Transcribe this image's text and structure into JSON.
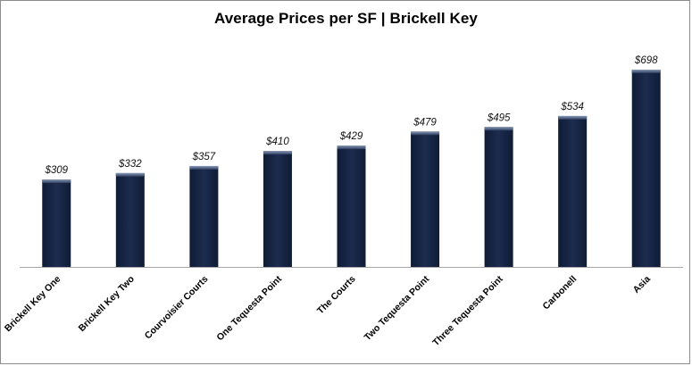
{
  "chart_data": {
    "type": "bar",
    "title": "Average Prices per SF | Brickell Key",
    "categories": [
      "Brickell Key One",
      "Brickell Key Two",
      "Courvoisier Courts",
      "One Tequesta Point",
      "The Courts",
      "Two Tequesta Point",
      "Three Tequesta Point",
      "Carbonell",
      "Asia"
    ],
    "values": [
      309,
      332,
      357,
      410,
      429,
      479,
      495,
      534,
      698
    ],
    "value_labels": [
      "$309",
      "$332",
      "$357",
      "$410",
      "$429",
      "$479",
      "$495",
      "$534",
      "$698"
    ],
    "xlabel": "",
    "ylabel": "",
    "ylim": [
      0,
      750
    ],
    "grid": false,
    "legend": "none",
    "bar_color": "#1b2a4a",
    "bar_highlight": "#5b6b8c"
  }
}
